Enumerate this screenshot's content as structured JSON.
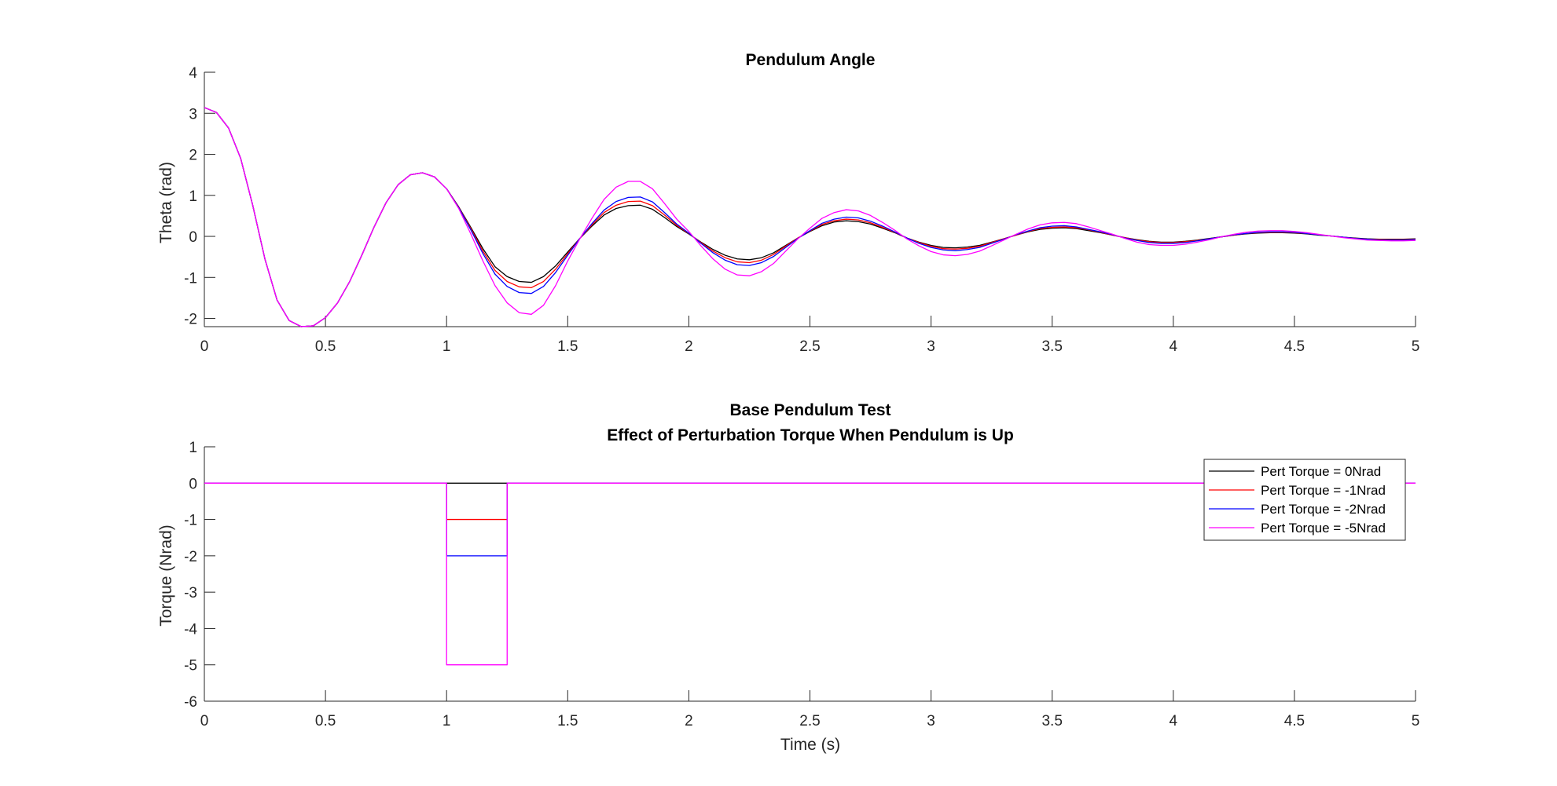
{
  "colors": {
    "pert_0": "#000000",
    "pert_1": "#ff0000",
    "pert_2": "#0000ff",
    "pert_5": "#ff00ff"
  },
  "chart_data": [
    {
      "type": "line",
      "title": "Pendulum Angle",
      "xlabel": "",
      "ylabel": "Theta (rad)",
      "xlim": [
        0,
        5
      ],
      "ylim": [
        -2.2,
        4
      ],
      "xticks": [
        "0",
        "0.5",
        "1",
        "1.5",
        "2",
        "2.5",
        "3",
        "3.5",
        "4",
        "4.5",
        "5"
      ],
      "yticks": [
        "-2",
        "-1",
        "0",
        "1",
        "2",
        "3",
        "4"
      ],
      "grid": false,
      "series": [
        {
          "name": "Pert Torque = 0Nrad",
          "color": "#000000",
          "x": [
            0,
            0.05,
            0.1,
            0.15,
            0.2,
            0.25,
            0.3,
            0.35,
            0.4,
            0.45,
            0.5,
            0.55,
            0.6,
            0.65,
            0.7,
            0.75,
            0.8,
            0.85,
            0.9,
            0.95,
            1.0,
            1.05,
            1.1,
            1.15,
            1.2,
            1.25,
            1.3,
            1.35,
            1.4,
            1.45,
            1.5,
            1.55,
            1.6,
            1.65,
            1.7,
            1.75,
            1.8,
            1.85,
            1.9,
            1.95,
            2.0,
            2.05,
            2.1,
            2.15,
            2.2,
            2.25,
            2.3,
            2.35,
            2.4,
            2.45,
            2.5,
            2.55,
            2.6,
            2.65,
            2.7,
            2.75,
            2.8,
            2.85,
            2.9,
            2.95,
            3.0,
            3.05,
            3.1,
            3.15,
            3.2,
            3.25,
            3.3,
            3.35,
            3.4,
            3.45,
            3.5,
            3.55,
            3.6,
            3.65,
            3.7,
            3.75,
            3.8,
            3.85,
            3.9,
            3.95,
            4.0,
            4.05,
            4.1,
            4.15,
            4.2,
            4.25,
            4.3,
            4.35,
            4.4,
            4.45,
            4.5,
            4.55,
            4.6,
            4.65,
            4.7,
            4.75,
            4.8,
            4.85,
            4.9,
            4.95,
            5.0
          ],
          "y": [
            3.14,
            3.02,
            2.64,
            1.9,
            0.75,
            -0.55,
            -1.55,
            -2.05,
            -2.2,
            -2.18,
            -1.98,
            -1.62,
            -1.1,
            -0.46,
            0.22,
            0.82,
            1.26,
            1.5,
            1.55,
            1.45,
            1.16,
            0.72,
            0.22,
            -0.3,
            -0.74,
            -0.98,
            -1.1,
            -1.12,
            -0.98,
            -0.72,
            -0.38,
            -0.05,
            0.25,
            0.52,
            0.68,
            0.75,
            0.76,
            0.66,
            0.46,
            0.24,
            0.06,
            -0.14,
            -0.32,
            -0.46,
            -0.55,
            -0.57,
            -0.52,
            -0.4,
            -0.22,
            -0.04,
            0.12,
            0.26,
            0.35,
            0.38,
            0.36,
            0.3,
            0.2,
            0.09,
            -0.04,
            -0.14,
            -0.22,
            -0.27,
            -0.28,
            -0.26,
            -0.22,
            -0.14,
            -0.06,
            0.03,
            0.11,
            0.17,
            0.2,
            0.21,
            0.19,
            0.14,
            0.09,
            0.03,
            -0.03,
            -0.08,
            -0.12,
            -0.14,
            -0.14,
            -0.12,
            -0.09,
            -0.05,
            -0.01,
            0.03,
            0.06,
            0.08,
            0.09,
            0.09,
            0.08,
            0.06,
            0.03,
            0.01,
            -0.02,
            -0.04,
            -0.06,
            -0.07,
            -0.07,
            -0.07,
            -0.06
          ]
        },
        {
          "name": "Pert Torque = -1Nrad",
          "color": "#ff0000",
          "x": [
            0,
            0.05,
            0.1,
            0.15,
            0.2,
            0.25,
            0.3,
            0.35,
            0.4,
            0.45,
            0.5,
            0.55,
            0.6,
            0.65,
            0.7,
            0.75,
            0.8,
            0.85,
            0.9,
            0.95,
            1.0,
            1.05,
            1.1,
            1.15,
            1.2,
            1.25,
            1.3,
            1.35,
            1.4,
            1.45,
            1.5,
            1.55,
            1.6,
            1.65,
            1.7,
            1.75,
            1.8,
            1.85,
            1.9,
            1.95,
            2.0,
            2.05,
            2.1,
            2.15,
            2.2,
            2.25,
            2.3,
            2.35,
            2.4,
            2.45,
            2.5,
            2.55,
            2.6,
            2.65,
            2.7,
            2.75,
            2.8,
            2.85,
            2.9,
            2.95,
            3.0,
            3.05,
            3.1,
            3.15,
            3.2,
            3.25,
            3.3,
            3.35,
            3.4,
            3.45,
            3.5,
            3.55,
            3.6,
            3.65,
            3.7,
            3.75,
            3.8,
            3.85,
            3.9,
            3.95,
            4.0,
            4.05,
            4.1,
            4.15,
            4.2,
            4.25,
            4.3,
            4.35,
            4.4,
            4.45,
            4.5,
            4.55,
            4.6,
            4.65,
            4.7,
            4.75,
            4.8,
            4.85,
            4.9,
            4.95,
            5.0
          ],
          "y": [
            3.14,
            3.02,
            2.64,
            1.9,
            0.75,
            -0.55,
            -1.55,
            -2.05,
            -2.2,
            -2.18,
            -1.98,
            -1.62,
            -1.1,
            -0.46,
            0.22,
            0.82,
            1.26,
            1.5,
            1.55,
            1.45,
            1.16,
            0.71,
            0.19,
            -0.36,
            -0.83,
            -1.1,
            -1.23,
            -1.25,
            -1.1,
            -0.8,
            -0.42,
            -0.05,
            0.28,
            0.58,
            0.76,
            0.85,
            0.86,
            0.75,
            0.52,
            0.27,
            0.07,
            -0.15,
            -0.36,
            -0.52,
            -0.62,
            -0.64,
            -0.58,
            -0.44,
            -0.24,
            -0.04,
            0.13,
            0.29,
            0.38,
            0.42,
            0.4,
            0.33,
            0.22,
            0.1,
            -0.04,
            -0.15,
            -0.24,
            -0.3,
            -0.31,
            -0.29,
            -0.24,
            -0.15,
            -0.06,
            0.03,
            0.12,
            0.19,
            0.22,
            0.23,
            0.21,
            0.16,
            0.1,
            0.03,
            -0.03,
            -0.09,
            -0.13,
            -0.15,
            -0.15,
            -0.13,
            -0.1,
            -0.06,
            -0.01,
            0.03,
            0.07,
            0.09,
            0.1,
            0.1,
            0.09,
            0.07,
            0.04,
            0.01,
            -0.02,
            -0.05,
            -0.07,
            -0.08,
            -0.08,
            -0.08,
            -0.07
          ]
        },
        {
          "name": "Pert Torque = -2Nrad",
          "color": "#0000ff",
          "x": [
            0,
            0.05,
            0.1,
            0.15,
            0.2,
            0.25,
            0.3,
            0.35,
            0.4,
            0.45,
            0.5,
            0.55,
            0.6,
            0.65,
            0.7,
            0.75,
            0.8,
            0.85,
            0.9,
            0.95,
            1.0,
            1.05,
            1.1,
            1.15,
            1.2,
            1.25,
            1.3,
            1.35,
            1.4,
            1.45,
            1.5,
            1.55,
            1.6,
            1.65,
            1.7,
            1.75,
            1.8,
            1.85,
            1.9,
            1.95,
            2.0,
            2.05,
            2.1,
            2.15,
            2.2,
            2.25,
            2.3,
            2.35,
            2.4,
            2.45,
            2.5,
            2.55,
            2.6,
            2.65,
            2.7,
            2.75,
            2.8,
            2.85,
            2.9,
            2.95,
            3.0,
            3.05,
            3.1,
            3.15,
            3.2,
            3.25,
            3.3,
            3.35,
            3.4,
            3.45,
            3.5,
            3.55,
            3.6,
            3.65,
            3.7,
            3.75,
            3.8,
            3.85,
            3.9,
            3.95,
            4.0,
            4.05,
            4.1,
            4.15,
            4.2,
            4.25,
            4.3,
            4.35,
            4.4,
            4.45,
            4.5,
            4.55,
            4.6,
            4.65,
            4.7,
            4.75,
            4.8,
            4.85,
            4.9,
            4.95,
            5.0
          ],
          "y": [
            3.14,
            3.02,
            2.64,
            1.9,
            0.75,
            -0.55,
            -1.55,
            -2.05,
            -2.2,
            -2.18,
            -1.98,
            -1.62,
            -1.1,
            -0.46,
            0.22,
            0.82,
            1.26,
            1.5,
            1.55,
            1.45,
            1.16,
            0.7,
            0.16,
            -0.42,
            -0.92,
            -1.22,
            -1.37,
            -1.39,
            -1.22,
            -0.88,
            -0.46,
            -0.05,
            0.31,
            0.64,
            0.85,
            0.95,
            0.96,
            0.84,
            0.58,
            0.3,
            0.08,
            -0.17,
            -0.4,
            -0.58,
            -0.69,
            -0.71,
            -0.64,
            -0.49,
            -0.27,
            -0.05,
            0.14,
            0.32,
            0.42,
            0.47,
            0.45,
            0.37,
            0.25,
            0.11,
            -0.04,
            -0.17,
            -0.27,
            -0.33,
            -0.35,
            -0.32,
            -0.27,
            -0.17,
            -0.07,
            0.04,
            0.13,
            0.21,
            0.25,
            0.26,
            0.23,
            0.17,
            0.11,
            0.04,
            -0.04,
            -0.1,
            -0.15,
            -0.17,
            -0.17,
            -0.15,
            -0.11,
            -0.06,
            -0.01,
            0.04,
            0.07,
            0.1,
            0.11,
            0.11,
            0.1,
            0.07,
            0.04,
            0.01,
            -0.02,
            -0.05,
            -0.07,
            -0.09,
            -0.09,
            -0.09,
            -0.08
          ]
        },
        {
          "name": "Pert Torque = -5Nrad",
          "color": "#ff00ff",
          "x": [
            0,
            0.05,
            0.1,
            0.15,
            0.2,
            0.25,
            0.3,
            0.35,
            0.4,
            0.45,
            0.5,
            0.55,
            0.6,
            0.65,
            0.7,
            0.75,
            0.8,
            0.85,
            0.9,
            0.95,
            1.0,
            1.05,
            1.1,
            1.15,
            1.2,
            1.25,
            1.3,
            1.35,
            1.4,
            1.45,
            1.5,
            1.55,
            1.6,
            1.65,
            1.7,
            1.75,
            1.8,
            1.85,
            1.9,
            1.95,
            2.0,
            2.05,
            2.1,
            2.15,
            2.2,
            2.25,
            2.3,
            2.35,
            2.4,
            2.45,
            2.5,
            2.55,
            2.6,
            2.65,
            2.7,
            2.75,
            2.8,
            2.85,
            2.9,
            2.95,
            3.0,
            3.05,
            3.1,
            3.15,
            3.2,
            3.25,
            3.3,
            3.35,
            3.4,
            3.45,
            3.5,
            3.55,
            3.6,
            3.65,
            3.7,
            3.75,
            3.8,
            3.85,
            3.9,
            3.95,
            4.0,
            4.05,
            4.1,
            4.15,
            4.2,
            4.25,
            4.3,
            4.35,
            4.4,
            4.45,
            4.5,
            4.55,
            4.6,
            4.65,
            4.7,
            4.75,
            4.8,
            4.85,
            4.9,
            4.95,
            5.0
          ],
          "y": [
            3.14,
            3.02,
            2.64,
            1.9,
            0.75,
            -0.55,
            -1.55,
            -2.05,
            -2.2,
            -2.18,
            -1.98,
            -1.62,
            -1.1,
            -0.46,
            0.22,
            0.82,
            1.26,
            1.5,
            1.55,
            1.45,
            1.16,
            0.68,
            0.06,
            -0.6,
            -1.2,
            -1.62,
            -1.86,
            -1.9,
            -1.68,
            -1.2,
            -0.6,
            -0.06,
            0.44,
            0.9,
            1.2,
            1.34,
            1.34,
            1.16,
            0.8,
            0.42,
            0.12,
            -0.23,
            -0.55,
            -0.8,
            -0.94,
            -0.96,
            -0.86,
            -0.66,
            -0.36,
            -0.06,
            0.2,
            0.44,
            0.58,
            0.65,
            0.62,
            0.51,
            0.34,
            0.15,
            -0.06,
            -0.23,
            -0.37,
            -0.45,
            -0.47,
            -0.44,
            -0.36,
            -0.23,
            -0.09,
            0.05,
            0.18,
            0.28,
            0.33,
            0.34,
            0.31,
            0.23,
            0.14,
            0.05,
            -0.05,
            -0.14,
            -0.2,
            -0.22,
            -0.22,
            -0.19,
            -0.14,
            -0.08,
            -0.01,
            0.05,
            0.1,
            0.13,
            0.14,
            0.14,
            0.12,
            0.09,
            0.05,
            0.01,
            -0.03,
            -0.06,
            -0.09,
            -0.1,
            -0.11,
            -0.11,
            -0.1
          ]
        }
      ]
    },
    {
      "type": "line",
      "title": "Base Pendulum Test",
      "subtitle": "Effect of Perturbation Torque When Pendulum is Up",
      "xlabel": "Time (s)",
      "ylabel": "Torque (Nrad)",
      "xlim": [
        0,
        5
      ],
      "ylim": [
        -6,
        1
      ],
      "xticks": [
        "0",
        "0.5",
        "1",
        "1.5",
        "2",
        "2.5",
        "3",
        "3.5",
        "4",
        "4.5",
        "5"
      ],
      "yticks": [
        "-6",
        "-5",
        "-4",
        "-3",
        "-2",
        "-1",
        "0",
        "1"
      ],
      "grid": false,
      "legend": {
        "position": "top-right",
        "entries": [
          "Pert Torque = 0Nrad",
          "Pert Torque = -1Nrad",
          "Pert Torque = -2Nrad",
          "Pert Torque = -5Nrad"
        ]
      },
      "series": [
        {
          "name": "Pert Torque = 0Nrad",
          "color": "#000000",
          "x": [
            0,
            1,
            1,
            1.25,
            1.25,
            5
          ],
          "y": [
            0,
            0,
            0,
            0,
            0,
            0
          ]
        },
        {
          "name": "Pert Torque = -1Nrad",
          "color": "#ff0000",
          "x": [
            0,
            1,
            1,
            1.25,
            1.25,
            5
          ],
          "y": [
            0,
            0,
            -1,
            -1,
            0,
            0
          ]
        },
        {
          "name": "Pert Torque = -2Nrad",
          "color": "#0000ff",
          "x": [
            0,
            1,
            1,
            1.25,
            1.25,
            5
          ],
          "y": [
            0,
            0,
            -2,
            -2,
            0,
            0
          ]
        },
        {
          "name": "Pert Torque = -5Nrad",
          "color": "#ff00ff",
          "x": [
            0,
            1,
            1,
            1.25,
            1.25,
            5
          ],
          "y": [
            0,
            0,
            -5,
            -5,
            0,
            0
          ]
        }
      ]
    }
  ]
}
